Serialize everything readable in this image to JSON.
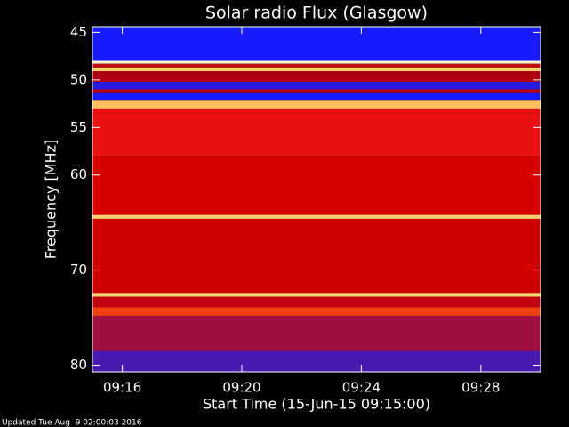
{
  "chart_data": {
    "type": "spectrogram",
    "title": "Solar radio Flux (Glasgow)",
    "y_label": "Frequency [MHz]",
    "x_label": "Start Time (15-Jun-15 09:15:00)",
    "footer": "Updated Tue Aug  9 02:00:03 2016",
    "xlim": [
      15,
      30
    ],
    "xticks": [
      {
        "value": 16,
        "label": "09:16"
      },
      {
        "value": 20,
        "label": "09:20"
      },
      {
        "value": 24,
        "label": "09:24"
      },
      {
        "value": 28,
        "label": "09:28"
      }
    ],
    "ylim": [
      44.4,
      80.7
    ],
    "yticks": [
      45,
      50,
      55,
      60,
      70,
      80
    ],
    "bands": [
      {
        "from": 44.4,
        "to": 48.0,
        "color": "#1a1aff"
      },
      {
        "from": 48.0,
        "to": 48.3,
        "color": "#fff4d0"
      },
      {
        "from": 48.3,
        "to": 48.7,
        "color": "#c01010"
      },
      {
        "from": 48.7,
        "to": 49.1,
        "color": "#ffd070"
      },
      {
        "from": 49.1,
        "to": 50.2,
        "color": "#b00010"
      },
      {
        "from": 50.2,
        "to": 51.0,
        "color": "#2a1ae0"
      },
      {
        "from": 51.0,
        "to": 51.3,
        "color": "#c00000"
      },
      {
        "from": 51.3,
        "to": 52.1,
        "color": "#1a1aff"
      },
      {
        "from": 52.1,
        "to": 53.0,
        "color": "#ffc060"
      },
      {
        "from": 53.0,
        "to": 58.0,
        "color": "#e81010"
      },
      {
        "from": 58.0,
        "to": 64.2,
        "color": "#d80000"
      },
      {
        "from": 64.2,
        "to": 64.6,
        "color": "#ffd070"
      },
      {
        "from": 64.6,
        "to": 72.4,
        "color": "#d00000"
      },
      {
        "from": 72.4,
        "to": 72.8,
        "color": "#ffd070"
      },
      {
        "from": 72.8,
        "to": 73.9,
        "color": "#c00010"
      },
      {
        "from": 73.9,
        "to": 74.8,
        "color": "#f04010"
      },
      {
        "from": 74.8,
        "to": 78.5,
        "color": "#a01040"
      },
      {
        "from": 78.5,
        "to": 80.7,
        "color": "#4a1ab0"
      }
    ]
  }
}
